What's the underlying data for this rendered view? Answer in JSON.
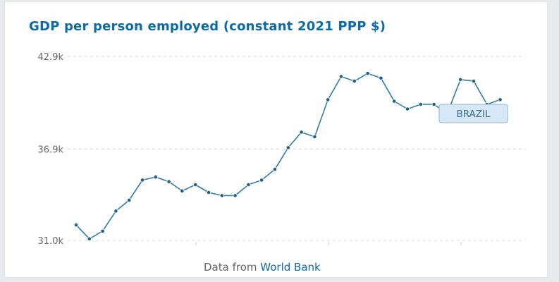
{
  "title": "GDP per person employed (constant 2021 PPP $)",
  "source": {
    "prefix": "Data from",
    "link_label": "World Bank"
  },
  "colors": {
    "title": "#0b6aa8",
    "line": "#2f7cac",
    "point": "#1f5f8b",
    "grid": "#d8d8d8",
    "tag_fill": "#d6e8f5",
    "tag_border": "#8fb6d3",
    "tag_text": "#3a6e96"
  },
  "chart_data": {
    "type": "line",
    "title": "GDP per person employed (constant 2021 PPP $)",
    "xlabel": "",
    "ylabel": "",
    "yticks": [
      "42.9k",
      "36.9k",
      "31.0k"
    ],
    "ytick_values": [
      42900,
      36900,
      31000
    ],
    "ylim": [
      31000,
      42900
    ],
    "grid": true,
    "annotations": [
      "BRAZIL"
    ],
    "series": [
      {
        "name": "BRAZIL",
        "values": [
          32000,
          31100,
          31600,
          32900,
          33600,
          34900,
          35100,
          34800,
          34200,
          34600,
          34100,
          33900,
          33900,
          34600,
          34900,
          35600,
          37000,
          38000,
          37700,
          40100,
          41600,
          41300,
          41800,
          41500,
          40000,
          39500,
          39800,
          39800,
          39200,
          41400,
          41300,
          39800,
          40100
        ]
      }
    ]
  }
}
